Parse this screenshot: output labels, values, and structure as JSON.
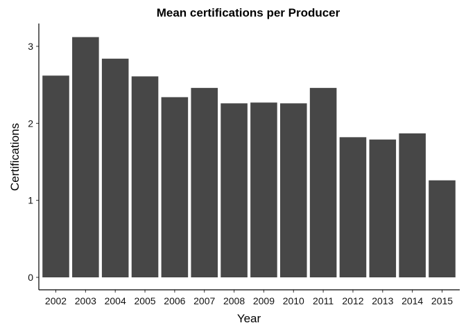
{
  "chart_data": {
    "type": "bar",
    "title": "Mean certifications per Producer",
    "xlabel": "Year",
    "ylabel": "Certifications",
    "categories": [
      "2002",
      "2003",
      "2004",
      "2005",
      "2006",
      "2007",
      "2008",
      "2009",
      "2010",
      "2011",
      "2012",
      "2013",
      "2014",
      "2015"
    ],
    "values": [
      2.62,
      3.12,
      2.84,
      2.61,
      2.34,
      2.46,
      2.26,
      2.27,
      2.26,
      2.46,
      1.82,
      1.79,
      1.87,
      1.26
    ],
    "ylim": [
      0,
      3.3
    ],
    "yticks": [
      0,
      1,
      2,
      3
    ],
    "bar_color": "#474747",
    "grid": false,
    "legend": "none"
  }
}
